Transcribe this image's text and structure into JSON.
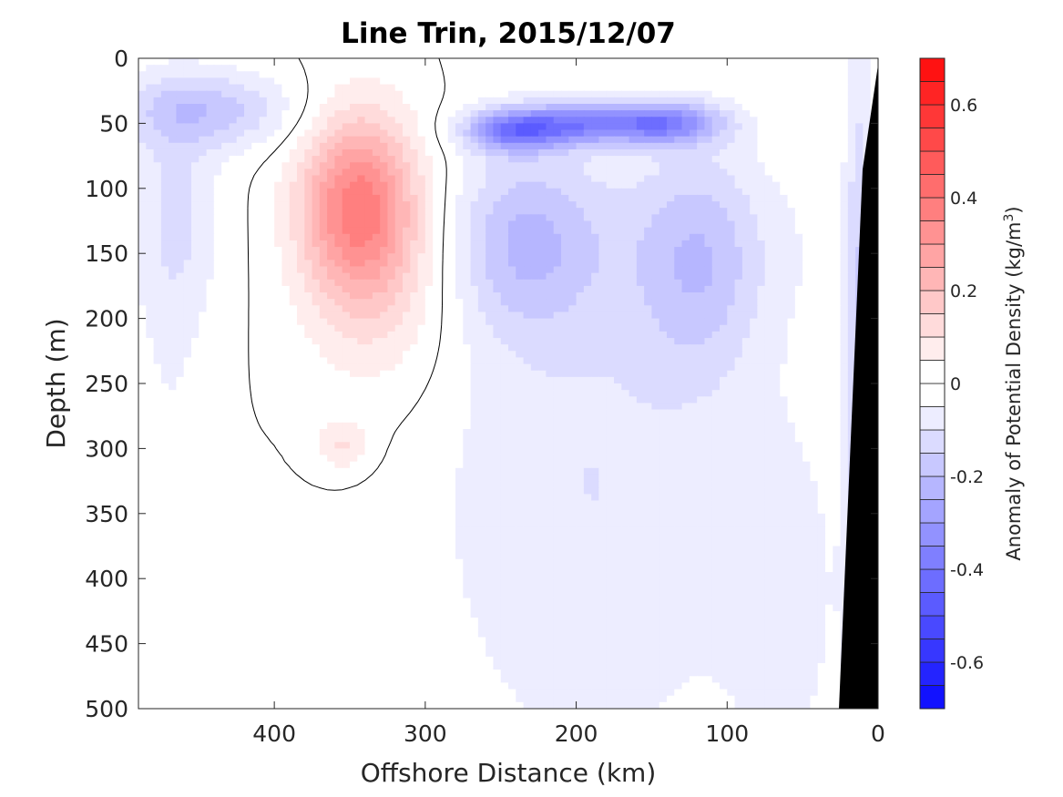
{
  "chart_data": {
    "type": "heatmap",
    "subtype": "filled-contour",
    "title": "Line Trin, 2015/12/07",
    "xlabel": "Offshore Distance (km)",
    "ylabel": "Depth (m)",
    "xlim": [
      0,
      490
    ],
    "x_reversed": true,
    "ylim": [
      0,
      500
    ],
    "y_reversed": true,
    "xticks": [
      400,
      300,
      200,
      100,
      0
    ],
    "xtick_labels": [
      "400",
      "300",
      "200",
      "100",
      "0"
    ],
    "yticks": [
      0,
      50,
      100,
      150,
      200,
      250,
      300,
      350,
      400,
      450,
      500
    ],
    "ytick_labels": [
      "0",
      "50",
      "100",
      "150",
      "200",
      "250",
      "300",
      "350",
      "400",
      "450",
      "500"
    ],
    "colorbar": {
      "label_prefix": "Anomaly of Potential Density (kg/m",
      "label_sup": "3",
      "label_suffix": ")",
      "range": [
        -0.7,
        0.7
      ],
      "step": 0.05,
      "ticks": [
        -0.6,
        -0.4,
        -0.2,
        0,
        0.2,
        0.4,
        0.6
      ],
      "tick_labels": [
        "-0.6",
        "-0.4",
        "-0.2",
        "0",
        "0.2",
        "0.4",
        "0.6"
      ],
      "colormap": "blue-white-red",
      "neg_color": "#0000ff",
      "zero_color": "#ffffff",
      "pos_color": "#ff0000"
    },
    "zero_contour": true,
    "bathymetry_color": "#000000",
    "features": [
      {
        "kind": "positive_anomaly",
        "center_x": 345,
        "center_y": 110,
        "peak": 0.3
      },
      {
        "kind": "positive_anomaly",
        "center_x": 355,
        "center_y": 295,
        "peak": 0.1
      },
      {
        "kind": "negative_anomaly",
        "center_x": 240,
        "center_y": 55,
        "peak": -0.5
      },
      {
        "kind": "negative_anomaly",
        "center_x": 140,
        "center_y": 50,
        "peak": -0.45
      },
      {
        "kind": "negative_anomaly",
        "center_x": 200,
        "center_y": 50,
        "peak": -0.4
      },
      {
        "kind": "negative_anomaly",
        "center_x": 420,
        "center_y": 40,
        "peak": -0.25
      }
    ]
  }
}
